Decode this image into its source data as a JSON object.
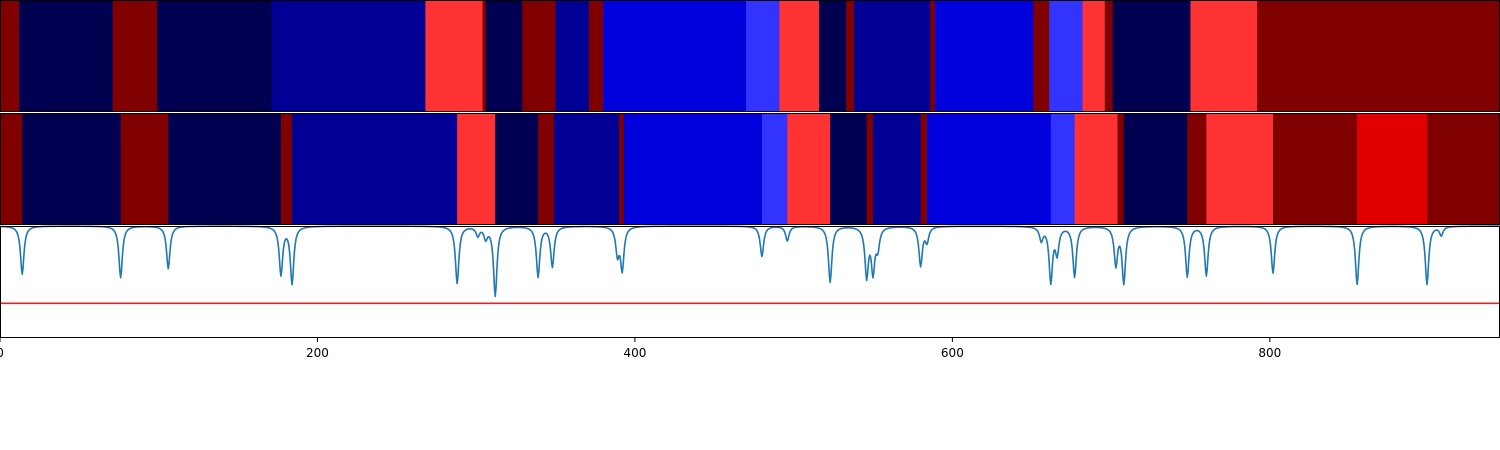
{
  "chart_data": [
    {
      "type": "heatmap",
      "panel": "top",
      "xlim": [
        0,
        945
      ],
      "segments": [
        {
          "x0": 0,
          "x1": 12,
          "color": "#800000"
        },
        {
          "x0": 12,
          "x1": 71,
          "color": "#000050"
        },
        {
          "x0": 71,
          "x1": 99,
          "color": "#800000"
        },
        {
          "x0": 99,
          "x1": 171,
          "color": "#000050"
        },
        {
          "x0": 171,
          "x1": 268,
          "color": "#000094"
        },
        {
          "x0": 268,
          "x1": 304,
          "color": "#ff3333"
        },
        {
          "x0": 304,
          "x1": 306,
          "color": "#800000"
        },
        {
          "x0": 306,
          "x1": 329,
          "color": "#000050"
        },
        {
          "x0": 329,
          "x1": 350,
          "color": "#800000"
        },
        {
          "x0": 350,
          "x1": 371,
          "color": "#000094"
        },
        {
          "x0": 371,
          "x1": 380,
          "color": "#800000"
        },
        {
          "x0": 380,
          "x1": 470,
          "color": "#0000dd"
        },
        {
          "x0": 470,
          "x1": 491,
          "color": "#3333ff"
        },
        {
          "x0": 491,
          "x1": 516,
          "color": "#ff3333"
        },
        {
          "x0": 516,
          "x1": 533,
          "color": "#000050"
        },
        {
          "x0": 533,
          "x1": 538,
          "color": "#800000"
        },
        {
          "x0": 538,
          "x1": 586,
          "color": "#000094"
        },
        {
          "x0": 586,
          "x1": 589,
          "color": "#800000"
        },
        {
          "x0": 589,
          "x1": 651,
          "color": "#0000dd"
        },
        {
          "x0": 651,
          "x1": 661,
          "color": "#800000"
        },
        {
          "x0": 661,
          "x1": 682,
          "color": "#3333ff"
        },
        {
          "x0": 682,
          "x1": 696,
          "color": "#ff3333"
        },
        {
          "x0": 696,
          "x1": 701,
          "color": "#800000"
        },
        {
          "x0": 701,
          "x1": 750,
          "color": "#000050"
        },
        {
          "x0": 750,
          "x1": 792,
          "color": "#ff3333"
        },
        {
          "x0": 792,
          "x1": 945,
          "color": "#800000"
        }
      ]
    },
    {
      "type": "heatmap",
      "panel": "middle",
      "xlim": [
        0,
        945
      ],
      "segments": [
        {
          "x0": 0,
          "x1": 14,
          "color": "#800000"
        },
        {
          "x0": 14,
          "x1": 76,
          "color": "#000050"
        },
        {
          "x0": 76,
          "x1": 106,
          "color": "#800000"
        },
        {
          "x0": 106,
          "x1": 177,
          "color": "#000050"
        },
        {
          "x0": 177,
          "x1": 184,
          "color": "#800000"
        },
        {
          "x0": 184,
          "x1": 288,
          "color": "#000094"
        },
        {
          "x0": 288,
          "x1": 312,
          "color": "#ff3333"
        },
        {
          "x0": 312,
          "x1": 339,
          "color": "#000050"
        },
        {
          "x0": 339,
          "x1": 349,
          "color": "#800000"
        },
        {
          "x0": 349,
          "x1": 390,
          "color": "#000094"
        },
        {
          "x0": 390,
          "x1": 393,
          "color": "#800000"
        },
        {
          "x0": 393,
          "x1": 480,
          "color": "#0000dd"
        },
        {
          "x0": 480,
          "x1": 496,
          "color": "#3333ff"
        },
        {
          "x0": 496,
          "x1": 523,
          "color": "#ff3333"
        },
        {
          "x0": 523,
          "x1": 546,
          "color": "#000050"
        },
        {
          "x0": 546,
          "x1": 550,
          "color": "#800000"
        },
        {
          "x0": 550,
          "x1": 580,
          "color": "#000094"
        },
        {
          "x0": 580,
          "x1": 584,
          "color": "#800000"
        },
        {
          "x0": 584,
          "x1": 662,
          "color": "#0000dd"
        },
        {
          "x0": 662,
          "x1": 677,
          "color": "#3333ff"
        },
        {
          "x0": 677,
          "x1": 704,
          "color": "#ff3333"
        },
        {
          "x0": 704,
          "x1": 708,
          "color": "#800000"
        },
        {
          "x0": 708,
          "x1": 748,
          "color": "#000050"
        },
        {
          "x0": 748,
          "x1": 760,
          "color": "#800000"
        },
        {
          "x0": 760,
          "x1": 802,
          "color": "#ff3333"
        },
        {
          "x0": 802,
          "x1": 855,
          "color": "#800000"
        },
        {
          "x0": 855,
          "x1": 899,
          "color": "#e00000"
        },
        {
          "x0": 899,
          "x1": 945,
          "color": "#800000"
        }
      ]
    },
    {
      "type": "line",
      "panel": "bottom",
      "xlim": [
        0,
        945
      ],
      "ylim": [
        0,
        1
      ],
      "xticks": [
        0,
        200,
        400,
        600,
        800
      ],
      "xtick_labels": [
        "0",
        "200",
        "400",
        "600",
        "800"
      ],
      "baseline": 1.0,
      "threshold": 0.31,
      "line_color": "#1f77b4",
      "threshold_color": "#d62728",
      "dips": [
        {
          "x": 14,
          "depth": 0.43
        },
        {
          "x": 76,
          "depth": 0.46
        },
        {
          "x": 106,
          "depth": 0.38
        },
        {
          "x": 177,
          "depth": 0.43
        },
        {
          "x": 184,
          "depth": 0.51
        },
        {
          "x": 288,
          "depth": 0.51
        },
        {
          "x": 301,
          "depth": 0.08
        },
        {
          "x": 306,
          "depth": 0.1
        },
        {
          "x": 312,
          "depth": 0.62
        },
        {
          "x": 339,
          "depth": 0.45
        },
        {
          "x": 348,
          "depth": 0.36
        },
        {
          "x": 389,
          "depth": 0.24
        },
        {
          "x": 392,
          "depth": 0.38
        },
        {
          "x": 480,
          "depth": 0.27
        },
        {
          "x": 496,
          "depth": 0.13
        },
        {
          "x": 523,
          "depth": 0.5
        },
        {
          "x": 546,
          "depth": 0.44
        },
        {
          "x": 550,
          "depth": 0.39
        },
        {
          "x": 553,
          "depth": 0.18
        },
        {
          "x": 580,
          "depth": 0.35
        },
        {
          "x": 584,
          "depth": 0.13
        },
        {
          "x": 656,
          "depth": 0.12
        },
        {
          "x": 662,
          "depth": 0.49
        },
        {
          "x": 666,
          "depth": 0.23
        },
        {
          "x": 677,
          "depth": 0.45
        },
        {
          "x": 703,
          "depth": 0.34
        },
        {
          "x": 708,
          "depth": 0.5
        },
        {
          "x": 748,
          "depth": 0.45
        },
        {
          "x": 760,
          "depth": 0.44
        },
        {
          "x": 802,
          "depth": 0.42
        },
        {
          "x": 855,
          "depth": 0.52
        },
        {
          "x": 899,
          "depth": 0.52
        },
        {
          "x": 908,
          "depth": 0.08
        }
      ]
    }
  ]
}
